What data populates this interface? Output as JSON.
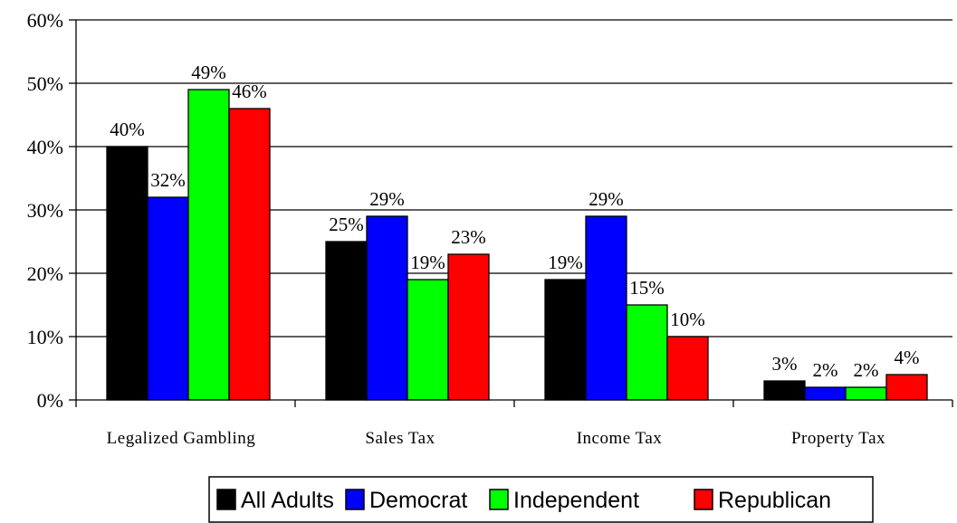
{
  "chart_data": {
    "type": "bar",
    "title": "",
    "xlabel": "",
    "ylabel": "",
    "categories": [
      "Legalized Gambling",
      "Sales Tax",
      "Income Tax",
      "Property Tax"
    ],
    "series": [
      {
        "name": "All Adults",
        "color": "#000000",
        "values": [
          40,
          25,
          19,
          3
        ]
      },
      {
        "name": "Democrat",
        "color": "#0000ff",
        "values": [
          32,
          29,
          29,
          2
        ]
      },
      {
        "name": "Independent",
        "color": "#00ff00",
        "values": [
          49,
          19,
          15,
          2
        ]
      },
      {
        "name": "Republican",
        "color": "#ff0000",
        "values": [
          46,
          23,
          10,
          4
        ]
      }
    ],
    "ylim": [
      0,
      60
    ],
    "yticks": [
      0,
      10,
      20,
      30,
      40,
      50,
      60
    ],
    "ytick_labels": [
      "0%",
      "10%",
      "20%",
      "30%",
      "40%",
      "50%",
      "60%"
    ],
    "value_format": "percent",
    "grid": "horizontal",
    "legend_position": "bottom"
  }
}
